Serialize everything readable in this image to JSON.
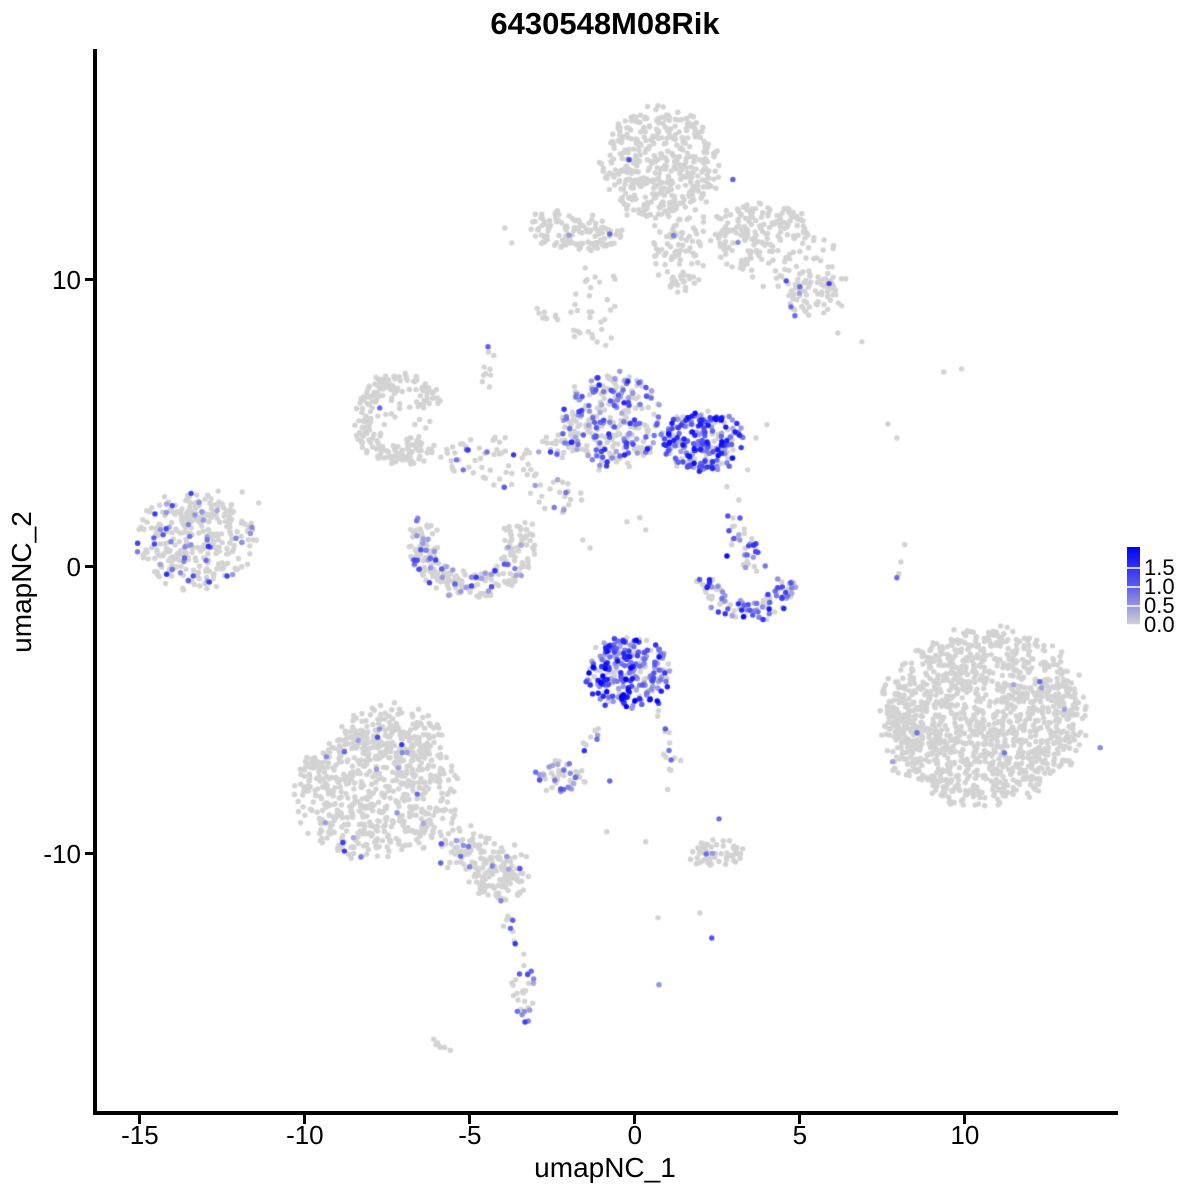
{
  "chart_data": {
    "type": "scatter",
    "title": "6430548M08Rik",
    "xlabel": "umapNC_1",
    "ylabel": "umapNC_2",
    "x_ticks": [
      -15,
      -10,
      -5,
      0,
      5,
      10
    ],
    "y_ticks": [
      10,
      0,
      -10
    ],
    "x_domain": [
      -16.36,
      14.55
    ],
    "y_domain": [
      -19.03,
      18.08
    ],
    "grid": false,
    "legend_position": "right",
    "color_zero": "#d3d3d3",
    "color_max": "#0000ff",
    "legend": {
      "bar_value_max": 2.05,
      "ticks": [
        {
          "label": "1.5",
          "value": 1.5
        },
        {
          "label": "1.0",
          "value": 1.0
        },
        {
          "label": "0.5",
          "value": 0.5
        },
        {
          "label": "0.0",
          "value": 0.0
        }
      ]
    },
    "clusters": [
      {
        "type": "blob",
        "x": 0.76,
        "y": 14.0,
        "rx": 1.7,
        "ry": 1.95,
        "n": 450,
        "pf": 0.008
      },
      {
        "type": "blob",
        "x": -1.9,
        "y": 11.7,
        "rx": 1.5,
        "ry": 0.62,
        "rot": -8,
        "n": 130,
        "pf": 0.01
      },
      {
        "type": "blob",
        "x": 1.36,
        "y": 10.8,
        "rx": 0.8,
        "ry": 1.25,
        "n": 85,
        "pf": 0.01
      },
      {
        "type": "blob",
        "x": 4.24,
        "y": 11.0,
        "rx": 2.3,
        "ry": 1.2,
        "rot": -28,
        "n": 150,
        "pf": 0.005
      },
      {
        "type": "blob",
        "x": 3.94,
        "y": 11.9,
        "rx": 1.25,
        "ry": 0.75,
        "n": 90,
        "pf": 0
      },
      {
        "type": "blob",
        "x": 5.45,
        "y": 9.4,
        "rx": 0.85,
        "ry": 0.65,
        "n": 55,
        "pf": 0.02
      },
      {
        "type": "blob",
        "x": -1.36,
        "y": 8.95,
        "rx": 0.95,
        "ry": 1.5,
        "n": 32,
        "pf": 0
      },
      {
        "type": "blob",
        "x": -2.67,
        "y": 8.8,
        "rx": 0.38,
        "ry": 0.18,
        "rot": -30,
        "n": 9,
        "pf": 0
      },
      {
        "type": "ring",
        "x": -7.12,
        "y": 5.12,
        "rx": 1.12,
        "ry": 1.28,
        "a0": 20,
        "a1": 320,
        "thick": 0.5,
        "n": 210,
        "pf": 0.005
      },
      {
        "type": "blob",
        "x": -7.0,
        "y": 5.0,
        "rx": 0.85,
        "ry": 0.95,
        "n": 22,
        "pf": 0
      },
      {
        "type": "blob",
        "x": -4.4,
        "y": 3.66,
        "rx": 1.75,
        "ry": 0.85,
        "rot": -10,
        "n": 55,
        "pf": 0.05
      },
      {
        "type": "trail",
        "pts": [
          [
            -4.64,
            5.99
          ],
          [
            -4.5,
            6.79
          ],
          [
            -4.42,
            7.49
          ]
        ],
        "jx": 0.12,
        "jy": 0.2,
        "n": 9,
        "pf": 0
      },
      {
        "type": "blob",
        "x": -0.7,
        "y": 5.12,
        "rx": 1.5,
        "ry": 1.65,
        "n": 290,
        "pf": 0.42,
        "tmax": 0.85
      },
      {
        "type": "blob",
        "x": 2.06,
        "y": 4.39,
        "rx": 1.2,
        "ry": 1.05,
        "n": 230,
        "pf": 0.72,
        "tmax": 0.95
      },
      {
        "type": "blob",
        "x": -2.27,
        "y": 4.25,
        "rx": 0.65,
        "ry": 0.5,
        "n": 25,
        "pf": 0.15
      },
      {
        "type": "blob",
        "x": -2.4,
        "y": 2.44,
        "rx": 0.8,
        "ry": 0.65,
        "n": 24,
        "pf": 0.1
      },
      {
        "type": "ring",
        "x": -4.94,
        "y": 0.8,
        "rx": 1.5,
        "ry": 1.45,
        "a0": 150,
        "a1": 390,
        "thick": 0.55,
        "n": 250,
        "pf": 0.17
      },
      {
        "type": "blob",
        "x": -13.3,
        "y": 0.94,
        "rx": 1.7,
        "ry": 1.65,
        "n": 330,
        "pf": 0.14
      },
      {
        "type": "trail",
        "pts": [
          [
            3.09,
            1.53
          ],
          [
            3.42,
            0.77
          ],
          [
            3.55,
            0.17
          ]
        ],
        "jx": 0.18,
        "jy": 0.25,
        "n": 34,
        "pf": 0.5,
        "tmax": 0.8
      },
      {
        "type": "ring",
        "x": 3.39,
        "y": -0.28,
        "rx": 1.25,
        "ry": 1.3,
        "a0": 185,
        "a1": 355,
        "thick": 0.5,
        "n": 100,
        "pf": 0.55,
        "tmax": 1.0
      },
      {
        "type": "blob",
        "x": -0.15,
        "y": -3.73,
        "rx": 1.32,
        "ry": 1.3,
        "n": 250,
        "pf": 0.78,
        "tmax": 1.0
      },
      {
        "type": "trail",
        "pts": [
          [
            -1.12,
            -5.6
          ],
          [
            -1.52,
            -6.45
          ]
        ],
        "jx": 0.1,
        "jy": 0.15,
        "n": 8,
        "pf": 0.4
      },
      {
        "type": "trail",
        "pts": [
          [
            0.7,
            -5.05
          ],
          [
            1.0,
            -5.92
          ],
          [
            1.12,
            -6.79
          ],
          [
            1.0,
            -7.7
          ]
        ],
        "jx": 0.12,
        "jy": 0.15,
        "n": 16,
        "pf": 0.3
      },
      {
        "type": "blob",
        "x": -2.2,
        "y": -7.28,
        "rx": 0.9,
        "ry": 0.55,
        "n": 48,
        "pf": 0.4,
        "tmax": 0.8
      },
      {
        "type": "blob",
        "x": -7.8,
        "y": -7.84,
        "rx": 2.35,
        "ry": 2.25,
        "n": 640,
        "pf": 0.035
      },
      {
        "type": "blob",
        "x": -7.36,
        "y": -5.75,
        "rx": 1.5,
        "ry": 0.95,
        "n": 130,
        "pf": 0.02
      },
      {
        "type": "trail",
        "pts": [
          [
            -5.76,
            -9.44
          ],
          [
            -4.7,
            -10.14
          ],
          [
            -3.73,
            -10.9
          ]
        ],
        "jx": 0.45,
        "jy": 0.4,
        "n": 110,
        "pf": 0.06
      },
      {
        "type": "blob",
        "x": -4.1,
        "y": -10.9,
        "rx": 0.85,
        "ry": 0.8,
        "n": 85,
        "pf": 0.05
      },
      {
        "type": "trail",
        "pts": [
          [
            -3.94,
            -11.88
          ],
          [
            -3.73,
            -12.72
          ],
          [
            -3.55,
            -13.62
          ]
        ],
        "jx": 0.1,
        "jy": 0.12,
        "n": 10,
        "pf": 0.25
      },
      {
        "type": "blob",
        "x": -3.36,
        "y": -14.91,
        "rx": 0.38,
        "ry": 1.05,
        "n": 28,
        "pf": 0.45,
        "tmax": 0.85
      },
      {
        "type": "blob",
        "x": -5.9,
        "y": -16.62,
        "rx": 0.4,
        "ry": 0.22,
        "rot": -35,
        "n": 7,
        "pf": 0.15,
        "tmax": 0.4
      },
      {
        "type": "blob",
        "x": 2.45,
        "y": -9.97,
        "rx": 0.9,
        "ry": 0.5,
        "n": 55,
        "pf": 0.02
      },
      {
        "type": "blob",
        "x": 10.6,
        "y": -5.19,
        "rx": 2.95,
        "ry": 2.95,
        "n": 1350,
        "pf": 0.003,
        "tmax": 0.6
      },
      {
        "type": "blob",
        "x": 8.12,
        "y": -5.78,
        "rx": 0.55,
        "ry": 1.45,
        "n": 70,
        "pf": 0.01
      }
    ],
    "singles": [
      {
        "x": 2.97,
        "y": 13.5,
        "t": 0.55
      },
      {
        "x": -0.76,
        "y": 11.6,
        "t": 0.5
      },
      {
        "x": 5.0,
        "y": 9.76,
        "t": 0.5
      },
      {
        "x": 4.73,
        "y": 9.06,
        "t": 0.5
      },
      {
        "x": 4.85,
        "y": 8.75,
        "t": 0.5
      },
      {
        "x": -4.45,
        "y": 7.67,
        "t": 0.55
      },
      {
        "x": -7.73,
        "y": 5.54,
        "t": 0.5
      },
      {
        "x": -5.1,
        "y": 4.08,
        "t": 0.45
      },
      {
        "x": -4.48,
        "y": 4.0,
        "t": 0.45
      },
      {
        "x": -5.2,
        "y": 3.38,
        "t": 0.45
      },
      {
        "x": 2.79,
        "y": 0.38,
        "t": 0.95
      },
      {
        "x": -0.97,
        "y": -3.8,
        "t": 1.0
      },
      {
        "x": -0.76,
        "y": -7.46,
        "t": 0.5
      },
      {
        "x": 2.55,
        "y": -8.78,
        "t": 0.5
      },
      {
        "x": 2.33,
        "y": -12.93,
        "t": 0.6
      },
      {
        "x": 0.73,
        "y": -14.56,
        "t": 0.3
      },
      {
        "x": 8.55,
        "y": -5.78,
        "t": 0.45
      },
      {
        "x": 11.2,
        "y": -6.48,
        "t": 0.45
      },
      {
        "x": 12.27,
        "y": -4.0,
        "t": 0.5
      },
      {
        "x": 14.1,
        "y": -6.3,
        "t": 0.35
      },
      {
        "x": 7.94,
        "y": -0.38,
        "t": 0.5
      },
      {
        "x": 9.36,
        "y": 6.79,
        "t": 0
      },
      {
        "x": 9.9,
        "y": 6.9,
        "t": 0
      },
      {
        "x": 7.67,
        "y": 4.98,
        "t": 0
      },
      {
        "x": 7.94,
        "y": 4.49,
        "t": 0
      },
      {
        "x": 8.18,
        "y": 0.77,
        "t": 0
      },
      {
        "x": 8.06,
        "y": 0.17,
        "t": 0
      },
      {
        "x": 8.0,
        "y": -0.24,
        "t": 0
      },
      {
        "x": 3.67,
        "y": 4.49,
        "t": 0
      },
      {
        "x": 3.42,
        "y": 3.38,
        "t": 0
      },
      {
        "x": 2.79,
        "y": 2.79,
        "t": 0
      },
      {
        "x": 3.15,
        "y": 2.33,
        "t": 0
      },
      {
        "x": 4.0,
        "y": 4.95,
        "t": 0
      },
      {
        "x": -0.24,
        "y": 1.57,
        "t": 0
      },
      {
        "x": 0.15,
        "y": 1.71,
        "t": 0
      },
      {
        "x": 0.33,
        "y": 1.29,
        "t": 0
      },
      {
        "x": -1.58,
        "y": 0.94,
        "t": 0
      },
      {
        "x": -1.36,
        "y": 0.66,
        "t": 0
      },
      {
        "x": -11.9,
        "y": 2.61,
        "t": 0
      },
      {
        "x": -11.4,
        "y": 2.23,
        "t": 0
      },
      {
        "x": -0.85,
        "y": -9.23,
        "t": 0
      },
      {
        "x": 0.33,
        "y": -9.58,
        "t": 0
      },
      {
        "x": 0.7,
        "y": -12.23,
        "t": 0
      },
      {
        "x": 1.97,
        "y": -12.06,
        "t": 0
      },
      {
        "x": -3.94,
        "y": 11.81,
        "t": 0
      },
      {
        "x": -3.73,
        "y": 11.29,
        "t": 0
      },
      {
        "x": 6.88,
        "y": 7.84,
        "t": 0
      },
      {
        "x": 6.15,
        "y": 8.15,
        "t": 0
      }
    ]
  }
}
